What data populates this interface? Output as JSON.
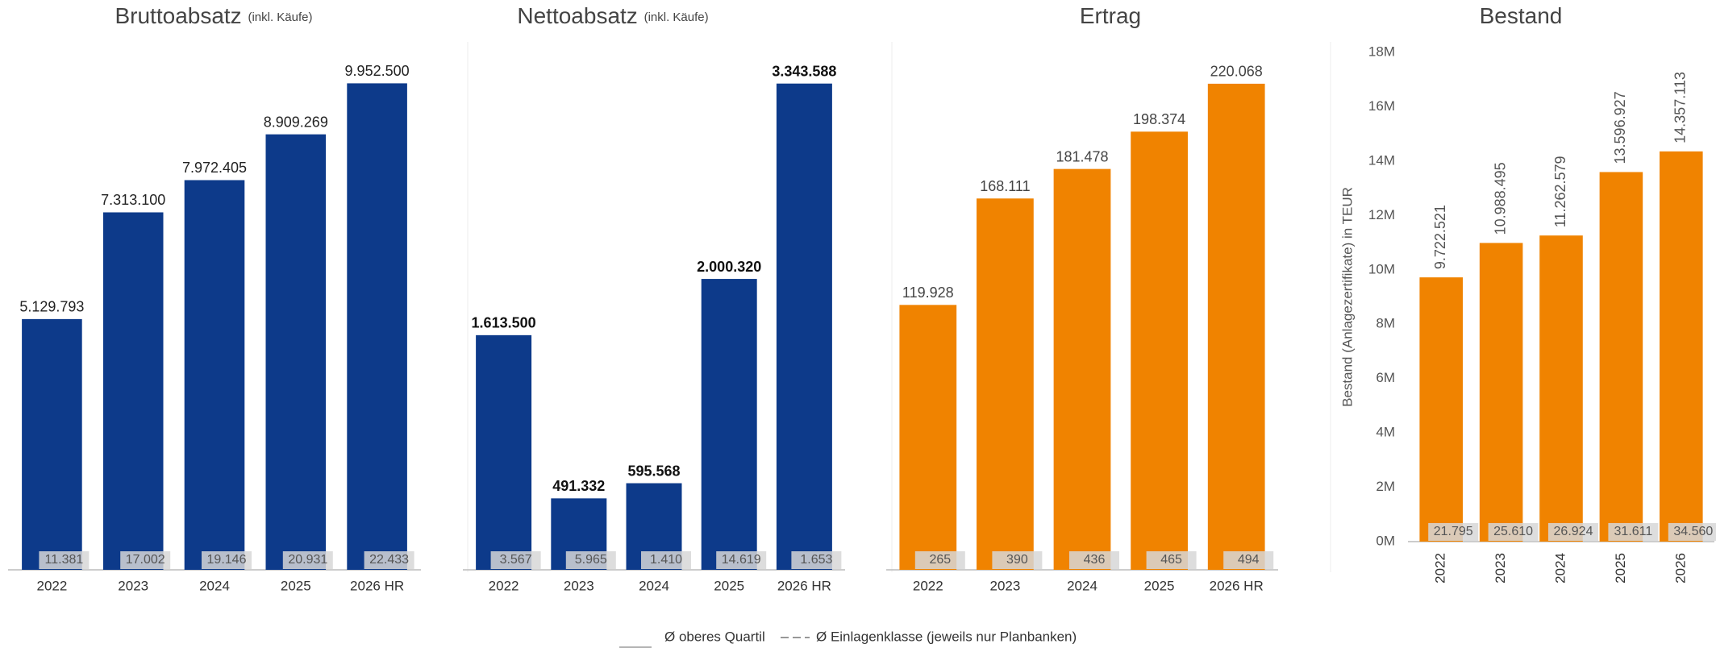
{
  "chart_data": [
    {
      "type": "bar",
      "title": "Bruttoabsatz",
      "subtitle": "(inkl. Käufe)",
      "categories": [
        "2022",
        "2023",
        "2024",
        "2025",
        "2026 HR"
      ],
      "values": [
        5129793,
        7313100,
        7972405,
        8909269,
        9952500
      ],
      "value_labels": [
        "5.129.793",
        "7.313.100",
        "7.972.405",
        "8.909.269",
        "9.952.500"
      ],
      "color": "#0d3a8a",
      "ylim": [
        0,
        10800000
      ],
      "benchmark": {
        "values": [
          11381,
          17002,
          19146,
          20931,
          22433
        ],
        "value_labels": [
          "11.381",
          "17.002",
          "19.146",
          "20.931",
          "22.433"
        ]
      }
    },
    {
      "type": "bar",
      "title": "Nettoabsatz",
      "subtitle": "(inkl. Käufe)",
      "categories": [
        "2022",
        "2023",
        "2024",
        "2025",
        "2026 HR"
      ],
      "values": [
        1613500,
        491332,
        595568,
        2000320,
        3343588
      ],
      "value_labels": [
        "1.613.500",
        "491.332",
        "595.568",
        "2.000.320",
        "3.343.588"
      ],
      "color": "#0d3a8a",
      "ylim": [
        0,
        3630000
      ],
      "benchmark": {
        "values": [
          3567,
          5965,
          1410,
          14619,
          1653
        ],
        "value_labels": [
          "3.567",
          "5.965",
          "1.410",
          "14.619",
          "1.653"
        ]
      }
    },
    {
      "type": "bar",
      "title": "Ertrag",
      "categories": [
        "2022",
        "2023",
        "2024",
        "2025",
        "2026 HR"
      ],
      "values": [
        119928,
        168111,
        181478,
        198374,
        220068
      ],
      "value_labels": [
        "119.928",
        "168.111",
        "181.478",
        "198.374",
        "220.068"
      ],
      "color": "#f08300",
      "ylim": [
        0,
        239000
      ],
      "benchmark": {
        "values": [
          265,
          390,
          436,
          465,
          494
        ]
      }
    },
    {
      "type": "bar",
      "title": "Bestand",
      "y_axis_label": "Bestand (Anlagezertifikate) in TEUR",
      "categories": [
        "2022",
        "2023",
        "2024",
        "2025",
        "2026"
      ],
      "values": [
        9722521,
        10988495,
        11262579,
        13596927,
        14357113
      ],
      "value_labels": [
        "9.722.521",
        "10.988.495",
        "11.262.579",
        "13.596.927",
        "14.357.113"
      ],
      "color": "#f08300",
      "ylim": [
        0,
        18000000
      ],
      "yticks": [
        {
          "value": 0,
          "label": "0M"
        },
        {
          "value": 2000000,
          "label": "2M"
        },
        {
          "value": 4000000,
          "label": "4M"
        },
        {
          "value": 6000000,
          "label": "6M"
        },
        {
          "value": 8000000,
          "label": "8M"
        },
        {
          "value": 10000000,
          "label": "10M"
        },
        {
          "value": 12000000,
          "label": "12M"
        },
        {
          "value": 14000000,
          "label": "14M"
        },
        {
          "value": 16000000,
          "label": "16M"
        },
        {
          "value": 18000000,
          "label": "18M"
        }
      ],
      "benchmark": {
        "values": [
          21795,
          25610,
          26924,
          31611,
          34560
        ],
        "value_labels": [
          "21.795",
          "25.610",
          "26.924",
          "31.611",
          "34.560"
        ]
      }
    }
  ],
  "legend": [
    "Ø oberes Quartil",
    "Ø Einlagenklasse (jeweils nur Planbanken)"
  ]
}
